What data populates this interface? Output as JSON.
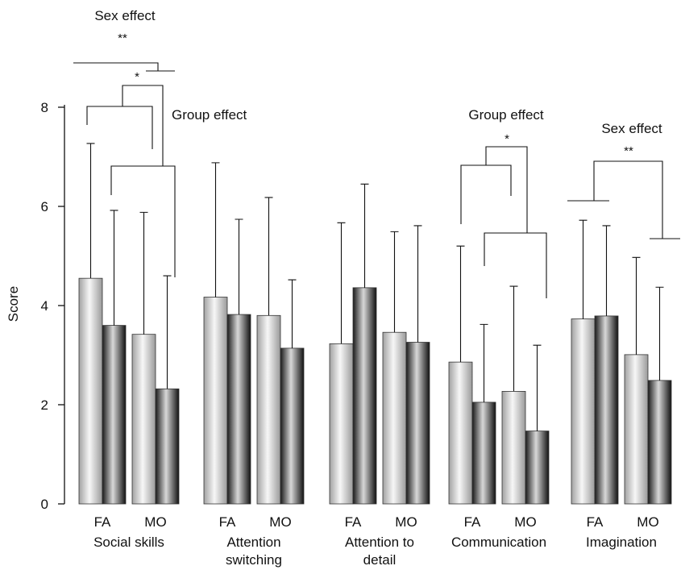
{
  "chart_data": {
    "type": "bar",
    "ylabel": "Score",
    "ylim": [
      0,
      8
    ],
    "yticks": [
      "0",
      "2",
      "4",
      "6",
      "8"
    ],
    "groups": [
      {
        "domain": [
          "Social skills"
        ],
        "categories": [
          "FA",
          "MO"
        ],
        "values": [
          [
            4.55,
            3.6
          ],
          [
            3.42,
            2.32
          ]
        ],
        "errors": [
          [
            7.27,
            5.92
          ],
          [
            5.88,
            4.6
          ]
        ]
      },
      {
        "domain": [
          "Attention",
          "switching"
        ],
        "categories": [
          "FA",
          "MO"
        ],
        "values": [
          [
            4.17,
            3.82
          ],
          [
            3.8,
            3.14
          ]
        ],
        "errors": [
          [
            6.88,
            5.74
          ],
          [
            6.18,
            4.52
          ]
        ]
      },
      {
        "domain": [
          "Attention to",
          "detail"
        ],
        "categories": [
          "FA",
          "MO"
        ],
        "values": [
          [
            3.23,
            4.36
          ],
          [
            3.46,
            3.26
          ]
        ],
        "errors": [
          [
            5.67,
            6.45
          ],
          [
            5.49,
            5.61
          ]
        ]
      },
      {
        "domain": [
          "Communication"
        ],
        "categories": [
          "FA",
          "MO"
        ],
        "values": [
          [
            2.86,
            2.05
          ],
          [
            2.27,
            1.47
          ]
        ],
        "errors": [
          [
            5.2,
            3.62
          ],
          [
            4.39,
            3.2
          ]
        ]
      },
      {
        "domain": [
          "Imagination"
        ],
        "categories": [
          "FA",
          "MO"
        ],
        "values": [
          [
            3.73,
            3.79
          ],
          [
            3.01,
            2.49
          ]
        ],
        "errors": [
          [
            5.72,
            5.61
          ],
          [
            4.97,
            4.37
          ]
        ]
      }
    ],
    "annotations": [
      {
        "label": "Sex effect",
        "significance": "**"
      },
      {
        "label": "Group effect",
        "significance": "*"
      },
      {
        "label": "Group effect",
        "significance": "*"
      },
      {
        "label": "Sex effect",
        "significance": "**"
      }
    ]
  }
}
